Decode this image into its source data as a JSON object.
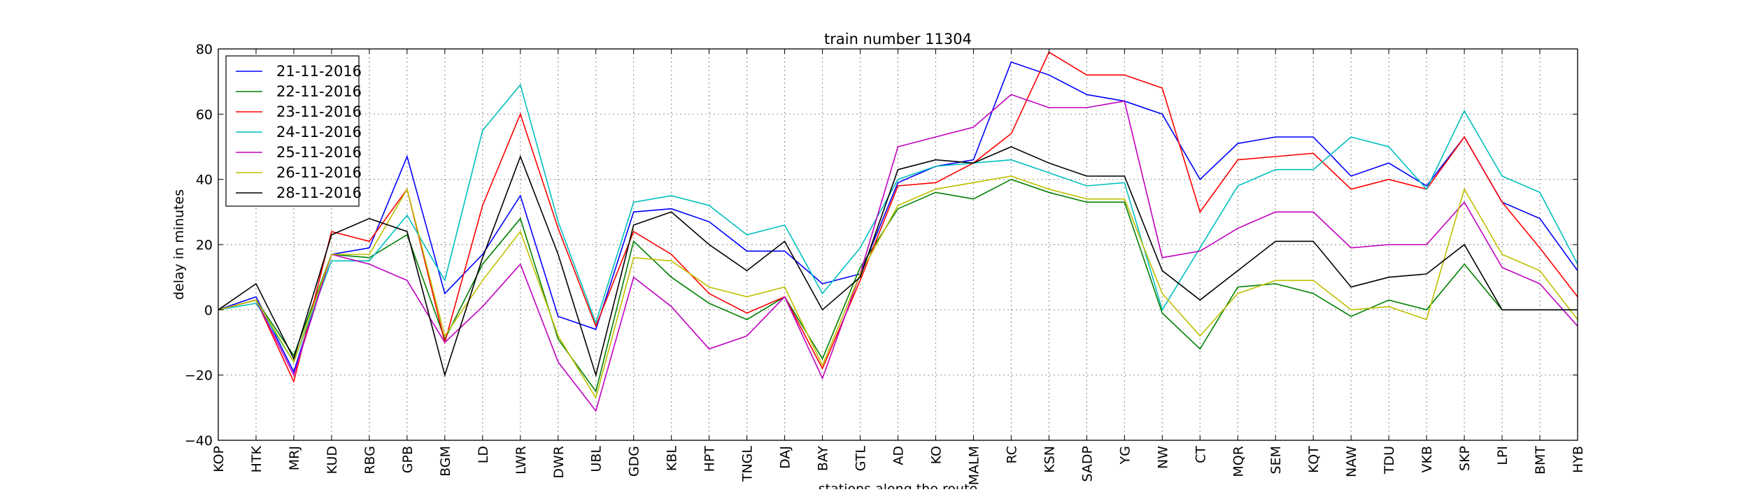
{
  "chart_data": {
    "type": "line",
    "title": "train number 11304",
    "xlabel": "stations along the route",
    "ylabel": "delay in minutes",
    "ylim": [
      -40,
      80
    ],
    "yticks": [
      -40,
      -20,
      0,
      20,
      40,
      60,
      80
    ],
    "grid": true,
    "legend_position": "top-left",
    "categories": [
      "KOP",
      "HTK",
      "MRJ",
      "KUD",
      "RBG",
      "GPB",
      "BGM",
      "LD",
      "LWR",
      "DWR",
      "UBL",
      "GDG",
      "KBL",
      "HPT",
      "TNGL",
      "DAJ",
      "BAY",
      "GTL",
      "AD",
      "KO",
      "MALM",
      "RC",
      "KSN",
      "SADP",
      "YG",
      "NW",
      "CT",
      "MQR",
      "SEM",
      "KQT",
      "NAW",
      "TDU",
      "VKB",
      "SKP",
      "LPI",
      "BMT",
      "HYB"
    ],
    "series": [
      {
        "name": "21-11-2016",
        "color": "#0000ff",
        "values": [
          0,
          4,
          -19,
          17,
          19,
          47,
          5,
          17,
          35,
          -2,
          -6,
          30,
          31,
          27,
          18,
          18,
          8,
          11,
          39,
          44,
          46,
          76,
          72,
          66,
          64,
          60,
          40,
          51,
          53,
          53,
          41,
          45,
          38,
          53,
          33,
          28,
          12
        ]
      },
      {
        "name": "22-11-2016",
        "color": "#008000",
        "values": [
          0,
          3,
          -14,
          17,
          16,
          23,
          -9,
          14,
          28,
          -9,
          -25,
          21,
          10,
          2,
          -3,
          4,
          -15,
          13,
          31,
          36,
          34,
          40,
          36,
          33,
          33,
          -1,
          -12,
          7,
          8,
          5,
          -2,
          3,
          0,
          14,
          0,
          0,
          0
        ]
      },
      {
        "name": "23-11-2016",
        "color": "#ff0000",
        "values": [
          0,
          3,
          -22,
          24,
          21,
          37,
          -10,
          32,
          60,
          25,
          -5,
          24,
          17,
          5,
          -1,
          4,
          -18,
          9,
          38,
          39,
          45,
          54,
          79,
          72,
          72,
          68,
          30,
          46,
          47,
          48,
          37,
          40,
          37,
          53,
          33,
          19,
          4
        ]
      },
      {
        "name": "24-11-2016",
        "color": "#00bfbf",
        "values": [
          0,
          2,
          -16,
          15,
          15,
          29,
          9,
          55,
          69,
          27,
          -4,
          33,
          35,
          32,
          23,
          26,
          5,
          19,
          40,
          44,
          45,
          46,
          42,
          38,
          39,
          0,
          19,
          38,
          43,
          43,
          53,
          50,
          37,
          61,
          41,
          36,
          14
        ]
      },
      {
        "name": "25-11-2016",
        "color": "#bf00bf",
        "values": [
          0,
          3,
          -20,
          17,
          14,
          9,
          -10,
          1,
          14,
          -16,
          -31,
          10,
          1,
          -12,
          -8,
          4,
          -21,
          11,
          50,
          53,
          56,
          66,
          62,
          62,
          64,
          16,
          18,
          25,
          30,
          30,
          19,
          20,
          20,
          33,
          13,
          8,
          -5
        ]
      },
      {
        "name": "26-11-2016",
        "color": "#bfbf00",
        "values": [
          0,
          3,
          -16,
          17,
          17,
          37,
          -8,
          9,
          24,
          -8,
          -27,
          16,
          15,
          7,
          4,
          7,
          -17,
          11,
          32,
          37,
          39,
          41,
          37,
          34,
          34,
          5,
          -8,
          5,
          9,
          9,
          0,
          1,
          -3,
          37,
          17,
          12,
          -3
        ]
      },
      {
        "name": "28-11-2016",
        "color": "#000000",
        "values": [
          0,
          8,
          -15,
          23,
          28,
          24,
          -20,
          16,
          47,
          17,
          -20,
          26,
          30,
          20,
          12,
          21,
          0,
          10,
          43,
          46,
          45,
          50,
          45,
          41,
          41,
          12,
          3,
          12,
          21,
          21,
          7,
          10,
          11,
          20,
          0,
          0,
          0
        ]
      }
    ]
  }
}
